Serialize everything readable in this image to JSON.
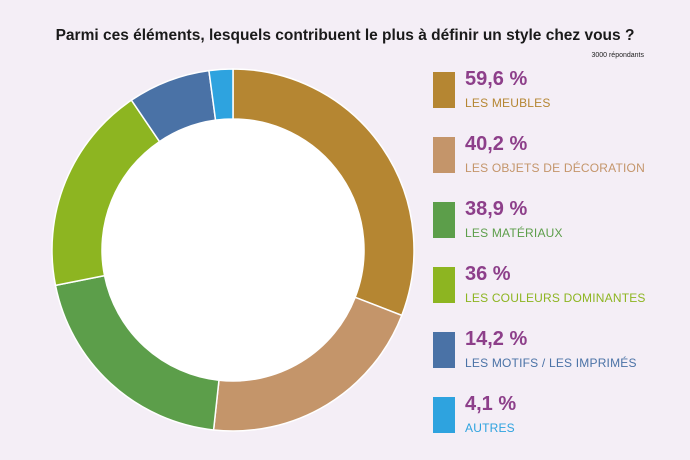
{
  "title": "Parmi ces éléments, lesquels contribuent le plus à définir un style chez vous ?",
  "subtitle": "3000 répondants",
  "chart_data": {
    "type": "pie",
    "title": "Parmi ces éléments, lesquels contribuent le plus à définir un style chez vous ?",
    "subtitle": "3000 répondants",
    "legend_position": "right",
    "slices": [
      {
        "name": "LES MEUBLES",
        "value": 59.6,
        "value_label": "59,6 %",
        "color": "#b58632"
      },
      {
        "name": "LES OBJETS DE DÉCORATION",
        "value": 40.2,
        "value_label": "40,2 %",
        "color": "#c4956a"
      },
      {
        "name": "LES MATÉRIAUX",
        "value": 38.9,
        "value_label": "38,9 %",
        "color": "#5c9e4a"
      },
      {
        "name": "LES COULEURS DOMINANTES",
        "value": 36,
        "value_label": "36 %",
        "color": "#8db521"
      },
      {
        "name": "LES MOTIFS / LES IMPRIMÉS",
        "value": 14.2,
        "value_label": "14,2 %",
        "color": "#4a72a6"
      },
      {
        "name": "AUTRES",
        "value": 4.1,
        "value_label": "4,1 %",
        "color": "#2ea3df"
      }
    ]
  }
}
